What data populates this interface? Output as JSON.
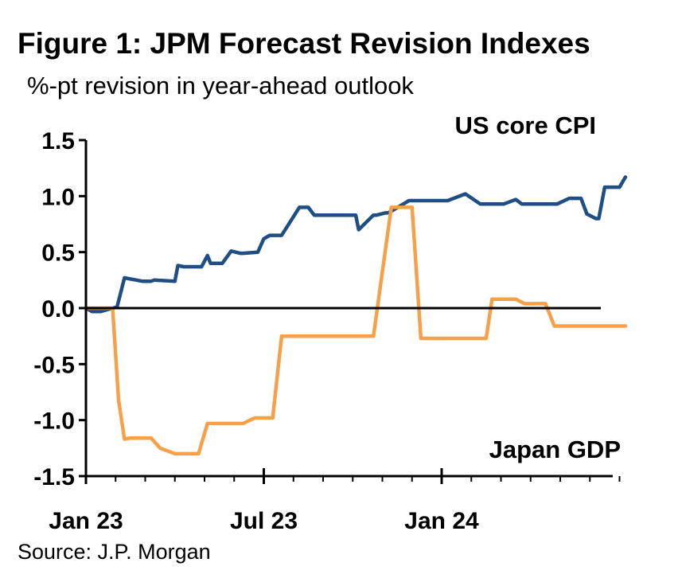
{
  "title": "Figure 1: JPM Forecast Revision Indexes",
  "subtitle": "%-pt revision in year-ahead outlook",
  "source": "Source: J.P. Morgan",
  "colors": {
    "us_core_cpi": "#1F4E85",
    "japan_gdp": "#F7A04A",
    "axis": "#000000"
  },
  "chart_data": {
    "type": "line",
    "x_unit": "month (Jan 23 = 0)",
    "xlim": [
      -0.1,
      18.2
    ],
    "ylim": [
      -1.5,
      1.5
    ],
    "y_ticks": [
      "1.5",
      "1.0",
      "0.5",
      "0.0",
      "-0.5",
      "-1.0",
      "-1.5"
    ],
    "y_tick_values": [
      1.5,
      1.0,
      0.5,
      0.0,
      -0.5,
      -1.0,
      -1.5
    ],
    "x_tick_labels": [
      "Jan 23",
      "Jul 23",
      "Jan 24"
    ],
    "x_tick_values": [
      0,
      6,
      12
    ],
    "x_minor_ticks": [
      0,
      1,
      2,
      3,
      4,
      5,
      6,
      7,
      8,
      9,
      10,
      11,
      12,
      13,
      14,
      15,
      16,
      17,
      18
    ],
    "series": [
      {
        "name": "US core CPI",
        "color": "#1F4E85",
        "x": [
          0,
          0.2,
          0.5,
          0.9,
          1.05,
          1.3,
          1.9,
          2.2,
          2.3,
          3.0,
          3.1,
          3.3,
          3.5,
          3.9,
          4.1,
          4.2,
          4.6,
          4.9,
          5.2,
          5.3,
          5.8,
          6.0,
          6.2,
          6.6,
          7.2,
          7.5,
          7.7,
          7.9,
          8.2,
          8.5,
          9.1,
          9.2,
          9.7,
          9.8,
          10.1,
          10.2,
          10.9,
          11.1,
          11.3,
          12.2,
          12.8,
          13.3,
          13.5,
          13.6,
          14.1,
          14.5,
          14.7,
          15.1,
          15.4,
          15.9,
          16.3,
          16.5,
          16.7,
          16.9,
          17.2,
          17.3,
          17.5,
          17.6,
          17.8,
          17.9,
          18.0,
          18.2
        ],
        "y": [
          0.0,
          -0.03,
          -0.03,
          0.0,
          0.01,
          0.27,
          0.24,
          0.24,
          0.25,
          0.24,
          0.38,
          0.37,
          0.37,
          0.37,
          0.47,
          0.4,
          0.4,
          0.51,
          0.49,
          0.49,
          0.5,
          0.62,
          0.65,
          0.65,
          0.9,
          0.9,
          0.83,
          0.83,
          0.83,
          0.83,
          0.83,
          0.7,
          0.83,
          0.83,
          0.85,
          0.85,
          0.96,
          0.96,
          0.96,
          0.96,
          1.02,
          0.93,
          0.93,
          0.93,
          0.93,
          0.97,
          0.93,
          0.93,
          0.93,
          0.93,
          0.98,
          0.98,
          0.98,
          0.84,
          0.8,
          0.8,
          1.08,
          1.08,
          1.08,
          1.08,
          1.08,
          1.17
        ]
      },
      {
        "name": "Japan GDP",
        "color": "#F7A04A",
        "x": [
          0,
          0.6,
          0.9,
          1.1,
          1.3,
          1.5,
          1.9,
          2.2,
          2.5,
          3.0,
          3.2,
          3.5,
          3.8,
          4.1,
          4.5,
          4.9,
          5.3,
          5.7,
          6.0,
          6.3,
          6.6,
          6.9,
          7.2,
          7.5,
          7.7,
          7.9,
          8.2,
          8.5,
          8.8,
          9.1,
          9.3,
          9.7,
          10.3,
          10.8,
          11.0,
          11.3,
          11.6,
          11.9,
          12.2,
          12.5,
          12.7,
          13.0,
          13.2,
          13.5,
          13.7,
          14.1,
          14.5,
          14.8,
          15.1,
          15.5,
          15.8,
          16.2,
          16.5,
          16.9,
          17.1,
          17.3,
          17.5,
          17.9,
          18.2
        ],
        "y": [
          0.0,
          0.0,
          0.0,
          -0.82,
          -1.17,
          -1.16,
          -1.16,
          -1.16,
          -1.25,
          -1.3,
          -1.3,
          -1.3,
          -1.3,
          -1.03,
          -1.03,
          -1.03,
          -1.03,
          -0.98,
          -0.98,
          -0.98,
          -0.25,
          -0.25,
          -0.25,
          -0.25,
          -0.25,
          -0.25,
          -0.25,
          -0.25,
          -0.25,
          -0.25,
          -0.25,
          -0.25,
          0.9,
          0.9,
          0.9,
          -0.27,
          -0.27,
          -0.27,
          -0.27,
          -0.27,
          -0.27,
          -0.27,
          -0.27,
          -0.27,
          0.08,
          0.08,
          0.08,
          0.04,
          0.04,
          0.04,
          -0.16,
          -0.16,
          -0.16,
          -0.16,
          -0.16,
          -0.16,
          -0.16,
          -0.16,
          -0.16
        ]
      }
    ],
    "annotations": [
      {
        "text": "US core CPI",
        "series": "US core CPI"
      },
      {
        "text": "Japan GDP",
        "series": "Japan GDP"
      }
    ]
  }
}
